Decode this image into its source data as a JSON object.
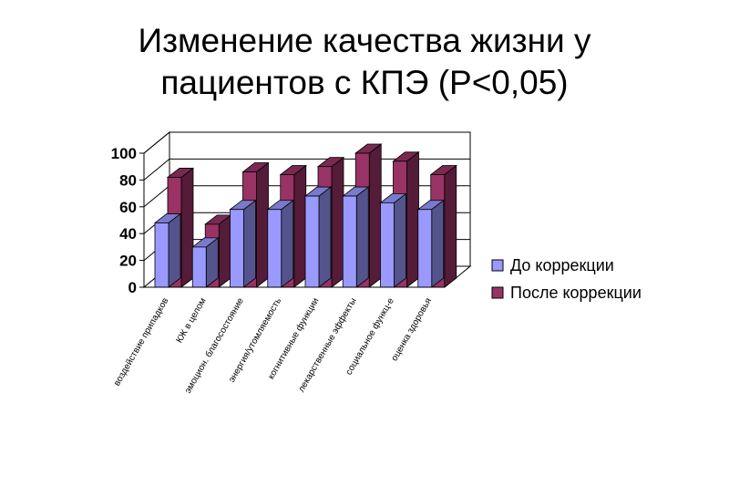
{
  "slide": {
    "title_line1": "Изменение качества жизни у",
    "title_line2": "пациентов с КПЭ (P<0,05)"
  },
  "chart_data": {
    "type": "bar",
    "title": "Изменение качества жизни у пациентов с КПЭ (P<0,05)",
    "xlabel": "",
    "ylabel": "",
    "ylim": [
      0,
      100
    ],
    "yticks": [
      "0",
      "20",
      "40",
      "60",
      "80",
      "100"
    ],
    "grid": true,
    "legend_position": "right",
    "categories": [
      "воздействие припадков",
      "КЖ в целом",
      "эмоцион. благосостояние",
      "энергия/утомляемость",
      "когнитивные функции",
      "лекарственные эффекты",
      "социальное функц-е",
      "оценка здоровья"
    ],
    "series": [
      {
        "name": "До коррекции",
        "color": "#9999ff",
        "values": [
          48,
          30,
          58,
          58,
          68,
          68,
          63,
          58
        ]
      },
      {
        "name": "После коррекции",
        "color": "#993366",
        "values": [
          82,
          47,
          86,
          84,
          90,
          100,
          94,
          84
        ]
      }
    ]
  }
}
